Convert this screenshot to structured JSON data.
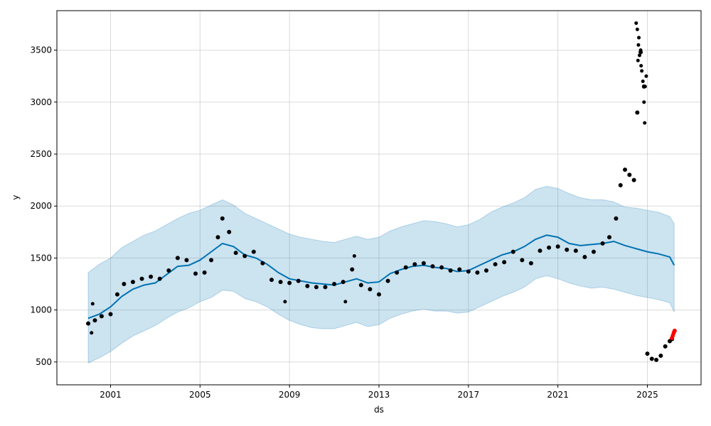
{
  "chart_data": {
    "type": "line",
    "title": "",
    "xlabel": "ds",
    "ylabel": "y",
    "xlim": [
      1998.6,
      2027.4
    ],
    "ylim": [
      280,
      3880
    ],
    "grid": true,
    "x_ticks": [
      {
        "value": 2001,
        "label": "2001"
      },
      {
        "value": 2005,
        "label": "2005"
      },
      {
        "value": 2009,
        "label": "2009"
      },
      {
        "value": 2013,
        "label": "2013"
      },
      {
        "value": 2017,
        "label": "2017"
      },
      {
        "value": 2021,
        "label": "2021"
      },
      {
        "value": 2025,
        "label": "2025"
      }
    ],
    "y_ticks": [
      {
        "value": 500,
        "label": "500"
      },
      {
        "value": 1000,
        "label": "1000"
      },
      {
        "value": 1500,
        "label": "1500"
      },
      {
        "value": 2000,
        "label": "2000"
      },
      {
        "value": 2500,
        "label": "2500"
      },
      {
        "value": 3000,
        "label": "3000"
      },
      {
        "value": 3500,
        "label": "3500"
      }
    ],
    "colors": {
      "forecast": "#0072B2",
      "interval": "#0072B2",
      "observed": "#000000",
      "highlight": "#ff0000"
    },
    "series": [
      {
        "kind": "forecast",
        "x": [
          2000.0,
          2000.5,
          2001.0,
          2001.5,
          2002.0,
          2002.5,
          2003.0,
          2003.5,
          2004.0,
          2004.5,
          2005.0,
          2005.5,
          2006.0,
          2006.5,
          2007.0,
          2007.5,
          2008.0,
          2008.5,
          2009.0,
          2009.5,
          2010.0,
          2010.5,
          2011.0,
          2011.5,
          2012.0,
          2012.5,
          2013.0,
          2013.5,
          2014.0,
          2014.5,
          2015.0,
          2015.5,
          2016.0,
          2016.5,
          2017.0,
          2017.5,
          2018.0,
          2018.5,
          2019.0,
          2019.5,
          2020.0,
          2020.5,
          2021.0,
          2021.5,
          2022.0,
          2022.5,
          2023.0,
          2023.5,
          2024.0,
          2024.5,
          2025.0,
          2025.5,
          2026.0,
          2026.2
        ],
        "y": [
          920,
          960,
          1030,
          1130,
          1200,
          1240,
          1260,
          1340,
          1420,
          1430,
          1480,
          1560,
          1640,
          1610,
          1530,
          1500,
          1440,
          1360,
          1300,
          1280,
          1260,
          1250,
          1240,
          1270,
          1300,
          1260,
          1270,
          1350,
          1390,
          1420,
          1430,
          1410,
          1400,
          1370,
          1380,
          1430,
          1480,
          1530,
          1560,
          1610,
          1680,
          1720,
          1700,
          1640,
          1620,
          1630,
          1640,
          1660,
          1620,
          1590,
          1560,
          1540,
          1510,
          1430
        ]
      },
      {
        "kind": "interval",
        "x": [
          2000.0,
          2000.5,
          2001.0,
          2001.5,
          2002.0,
          2002.5,
          2003.0,
          2003.5,
          2004.0,
          2004.5,
          2005.0,
          2005.5,
          2006.0,
          2006.5,
          2007.0,
          2007.5,
          2008.0,
          2008.5,
          2009.0,
          2009.5,
          2010.0,
          2010.5,
          2011.0,
          2011.5,
          2012.0,
          2012.5,
          2013.0,
          2013.5,
          2014.0,
          2014.5,
          2015.0,
          2015.5,
          2016.0,
          2016.5,
          2017.0,
          2017.5,
          2018.0,
          2018.5,
          2019.0,
          2019.5,
          2020.0,
          2020.5,
          2021.0,
          2021.5,
          2022.0,
          2022.5,
          2023.0,
          2023.5,
          2024.0,
          2024.5,
          2025.0,
          2025.5,
          2026.0,
          2026.2
        ],
        "upper": [
          1360,
          1440,
          1500,
          1600,
          1660,
          1720,
          1760,
          1820,
          1880,
          1930,
          1960,
          2010,
          2060,
          2010,
          1930,
          1880,
          1830,
          1780,
          1730,
          1700,
          1680,
          1660,
          1650,
          1680,
          1710,
          1680,
          1700,
          1760,
          1800,
          1830,
          1860,
          1850,
          1830,
          1800,
          1820,
          1870,
          1940,
          1990,
          2030,
          2080,
          2160,
          2190,
          2170,
          2120,
          2080,
          2060,
          2060,
          2040,
          1990,
          1980,
          1960,
          1940,
          1900,
          1830
        ],
        "lower": [
          490,
          540,
          600,
          680,
          750,
          800,
          850,
          920,
          980,
          1020,
          1080,
          1120,
          1190,
          1180,
          1110,
          1080,
          1030,
          960,
          900,
          860,
          830,
          820,
          820,
          850,
          880,
          840,
          860,
          920,
          960,
          990,
          1010,
          990,
          990,
          970,
          980,
          1030,
          1080,
          1130,
          1170,
          1220,
          1300,
          1330,
          1300,
          1260,
          1230,
          1210,
          1220,
          1200,
          1170,
          1140,
          1120,
          1100,
          1070,
          980
        ]
      },
      {
        "kind": "observed",
        "x": [
          2000.0,
          2000.3,
          2000.6,
          2001.0,
          2001.3,
          2001.6,
          2002.0,
          2002.4,
          2002.8,
          2003.2,
          2003.6,
          2004.0,
          2004.4,
          2004.8,
          2005.2,
          2005.5,
          2005.8,
          2006.0,
          2006.3,
          2006.6,
          2007.0,
          2007.4,
          2007.8,
          2008.2,
          2008.6,
          2009.0,
          2009.4,
          2009.8,
          2010.2,
          2010.6,
          2011.0,
          2011.4,
          2011.8,
          2012.2,
          2012.6,
          2013.0,
          2013.4,
          2013.8,
          2014.2,
          2014.6,
          2015.0,
          2015.4,
          2015.8,
          2016.2,
          2016.6,
          2017.0,
          2017.4,
          2017.8,
          2018.2,
          2018.6,
          2019.0,
          2019.4,
          2019.8,
          2020.2,
          2020.6,
          2021.0,
          2021.4,
          2021.8,
          2022.2,
          2022.6,
          2023.0,
          2023.3,
          2023.6,
          2023.8,
          2024.0,
          2024.2,
          2024.4,
          2024.55,
          2024.7,
          2024.85,
          2025.0,
          2025.2,
          2025.4,
          2025.6,
          2025.8,
          2026.0,
          2026.1
        ],
        "y": [
          870,
          900,
          940,
          960,
          1150,
          1250,
          1270,
          1300,
          1320,
          1300,
          1380,
          1500,
          1480,
          1350,
          1360,
          1480,
          1700,
          1880,
          1750,
          1550,
          1520,
          1560,
          1450,
          1290,
          1270,
          1260,
          1280,
          1230,
          1220,
          1220,
          1250,
          1270,
          1390,
          1240,
          1200,
          1150,
          1280,
          1360,
          1410,
          1440,
          1450,
          1420,
          1410,
          1380,
          1390,
          1370,
          1360,
          1380,
          1440,
          1460,
          1560,
          1480,
          1450,
          1570,
          1600,
          1610,
          1580,
          1570,
          1510,
          1560,
          1640,
          1700,
          1880,
          2200,
          2350,
          2300,
          2250,
          2900,
          3480,
          3150,
          580,
          530,
          520,
          560,
          650,
          700,
          720
        ]
      },
      {
        "kind": "highlight",
        "x": [
          2026.1,
          2026.14,
          2026.18,
          2026.22
        ],
        "y": [
          730,
          755,
          780,
          800
        ]
      }
    ],
    "scatter_extra": {
      "x": [
        2024.5,
        2024.55,
        2024.6,
        2024.65,
        2024.7,
        2024.75,
        2024.8,
        2024.85,
        2024.9,
        2024.95,
        2024.62,
        2024.58,
        2024.72,
        2024.88,
        2011.9,
        2011.5,
        2000.2,
        2008.8,
        2000.15
      ],
      "y": [
        3760,
        3700,
        3550,
        3450,
        3500,
        3300,
        3200,
        3000,
        3150,
        3250,
        3620,
        3400,
        3350,
        2800,
        1520,
        1080,
        1060,
        1080,
        780
      ]
    }
  }
}
